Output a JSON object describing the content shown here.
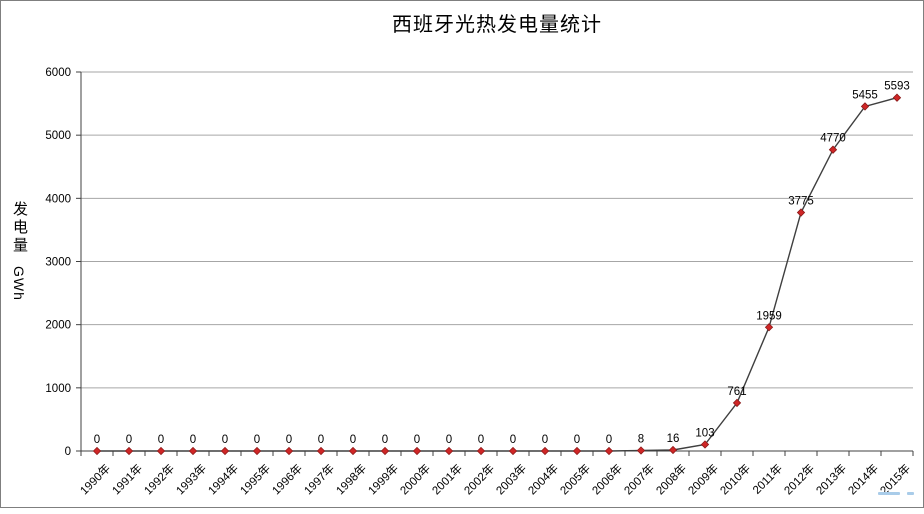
{
  "title": "西班牙光热发电量统计",
  "y_axis_title": {
    "cjk": "发电量",
    "latin": "GWh"
  },
  "colors": {
    "background": "#ffffff",
    "frame_border": "#7f7f7f",
    "gridline": "#a6a6a6",
    "axis": "#404040",
    "series_line": "#3f3f3f",
    "marker_fill": "#cf2626",
    "marker_stroke": "#8b1a1a",
    "text": "#000000",
    "artifact_blue": "#a9cce9"
  },
  "chart_data": {
    "type": "line",
    "title": "西班牙光热发电量统计",
    "ylabel": "发电量 GWh",
    "xlabel": "",
    "categories": [
      "1990年",
      "1991年",
      "1992年",
      "1993年",
      "1994年",
      "1995年",
      "1996年",
      "1997年",
      "1998年",
      "1999年",
      "2000年",
      "2001年",
      "2002年",
      "2003年",
      "2004年",
      "2005年",
      "2006年",
      "2007年",
      "2008年",
      "2009年",
      "2010年",
      "2011年",
      "2012年",
      "2013年",
      "2014年",
      "2015年"
    ],
    "values": [
      0,
      0,
      0,
      0,
      0,
      0,
      0,
      0,
      0,
      0,
      0,
      0,
      0,
      0,
      0,
      0,
      0,
      8,
      16,
      103,
      761,
      1959,
      3775,
      4770,
      5455,
      5593
    ],
    "ylim": [
      0,
      6000
    ],
    "ytick_interval": 1000,
    "yticks": [
      0,
      1000,
      2000,
      3000,
      4000,
      5000,
      6000
    ],
    "grid": true,
    "legend_position": "none",
    "marker": "diamond",
    "data_labels": "above"
  }
}
